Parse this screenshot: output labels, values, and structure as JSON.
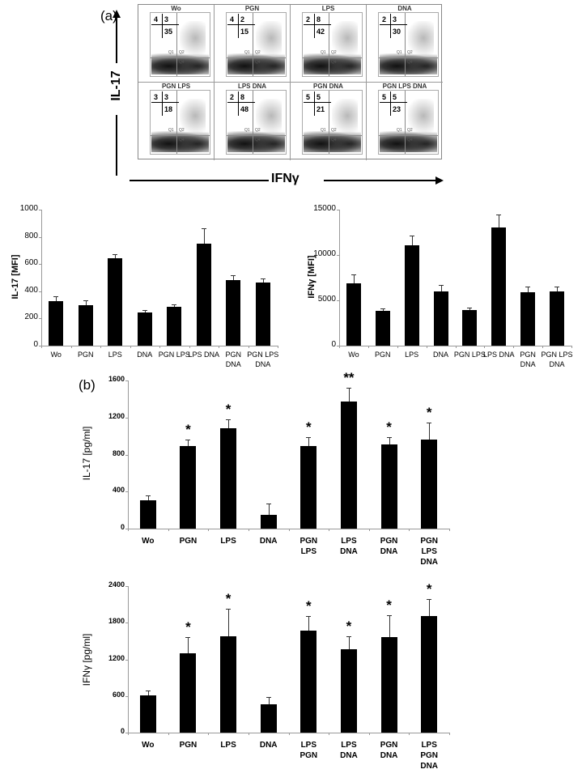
{
  "panel_a": {
    "label": "(a)",
    "y_axis_label": "IL-17",
    "x_axis_label": "IFNγ",
    "plots": [
      {
        "title": "Wo",
        "q1": "4",
        "q2": "3",
        "q3": "35"
      },
      {
        "title": "PGN",
        "q1": "4",
        "q2": "2",
        "q3": "15"
      },
      {
        "title": "LPS",
        "q1": "2",
        "q2": "8",
        "q3": "42"
      },
      {
        "title": "DNA",
        "q1": "2",
        "q2": "3",
        "q3": "30"
      },
      {
        "title": "PGN LPS",
        "q1": "3",
        "q2": "3",
        "q3": "18"
      },
      {
        "title": "LPS DNA",
        "q1": "2",
        "q2": "8",
        "q3": "48"
      },
      {
        "title": "PGN DNA",
        "q1": "5",
        "q2": "5",
        "q3": "21"
      },
      {
        "title": "PGN LPS DNA",
        "q1": "5",
        "q2": "5",
        "q3": "23"
      }
    ],
    "quadrant_labels": [
      "Q1",
      "Q2",
      "Q4"
    ]
  },
  "panel_b": {
    "label": "(b)"
  },
  "chart_data": [
    {
      "type": "bar",
      "title": "",
      "xlabel": "",
      "ylabel": "IL-17 [MFI]",
      "ylim": [
        0,
        1000
      ],
      "yticks": [
        "0",
        "200",
        "400",
        "600",
        "800",
        "1000"
      ],
      "categories": [
        "Wo",
        "PGN",
        "LPS",
        "DNA",
        "PGN LPS",
        "LPS DNA",
        "PGN\nDNA",
        "PGN LPS\nDNA"
      ],
      "values": [
        330,
        295,
        640,
        245,
        285,
        750,
        480,
        462
      ],
      "errors": [
        35,
        40,
        30,
        15,
        20,
        115,
        40,
        35
      ],
      "grid": false
    },
    {
      "type": "bar",
      "title": "",
      "xlabel": "",
      "ylabel": "IFNγ [MFI]",
      "ylim": [
        0,
        15000
      ],
      "yticks": [
        "0",
        "5000",
        "10000",
        "15000"
      ],
      "categories": [
        "Wo",
        "PGN",
        "LPS",
        "DNA",
        "PGN LPS",
        "LPS DNA",
        "PGN\nDNA",
        "PGN LPS\nDNA"
      ],
      "values": [
        6900,
        3850,
        11100,
        6000,
        3900,
        13000,
        5850,
        5950
      ],
      "errors": [
        950,
        250,
        1000,
        700,
        300,
        1500,
        650,
        550
      ],
      "grid": false
    },
    {
      "type": "bar",
      "title": "",
      "xlabel": "",
      "ylabel": "IL-17 [pg/ml]",
      "ylim": [
        0,
        1600
      ],
      "yticks": [
        "0",
        "400",
        "800",
        "1200",
        "1600"
      ],
      "categories": [
        "Wo",
        "PGN",
        "LPS",
        "DNA",
        "PGN\nLPS",
        "LPS\nDNA",
        "PGN\nDNA",
        "PGN\nLPS\nDNA"
      ],
      "values": [
        310,
        895,
        1085,
        150,
        895,
        1375,
        905,
        960
      ],
      "errors": [
        45,
        65,
        95,
        120,
        90,
        150,
        80,
        185
      ],
      "significance": [
        "",
        "*",
        "*",
        "",
        "*",
        "**",
        "*",
        "*"
      ],
      "grid": false
    },
    {
      "type": "bar",
      "title": "",
      "xlabel": "",
      "ylabel": "IFNγ [pg/ml]",
      "ylim": [
        0,
        2400
      ],
      "yticks": [
        "0",
        "600",
        "1200",
        "1800",
        "2400"
      ],
      "categories": [
        "Wo",
        "PGN",
        "LPS",
        "DNA",
        "LPS\nPGN",
        "LPS\nDNA",
        "PGN\nDNA",
        "LPS\nPGN\nDNA"
      ],
      "values": [
        605,
        1300,
        1580,
        460,
        1665,
        1360,
        1560,
        1910
      ],
      "errors": [
        85,
        265,
        450,
        130,
        240,
        220,
        360,
        280
      ],
      "significance": [
        "",
        "*",
        "*",
        "",
        "*",
        "*",
        "*",
        "*"
      ],
      "grid": false
    }
  ]
}
